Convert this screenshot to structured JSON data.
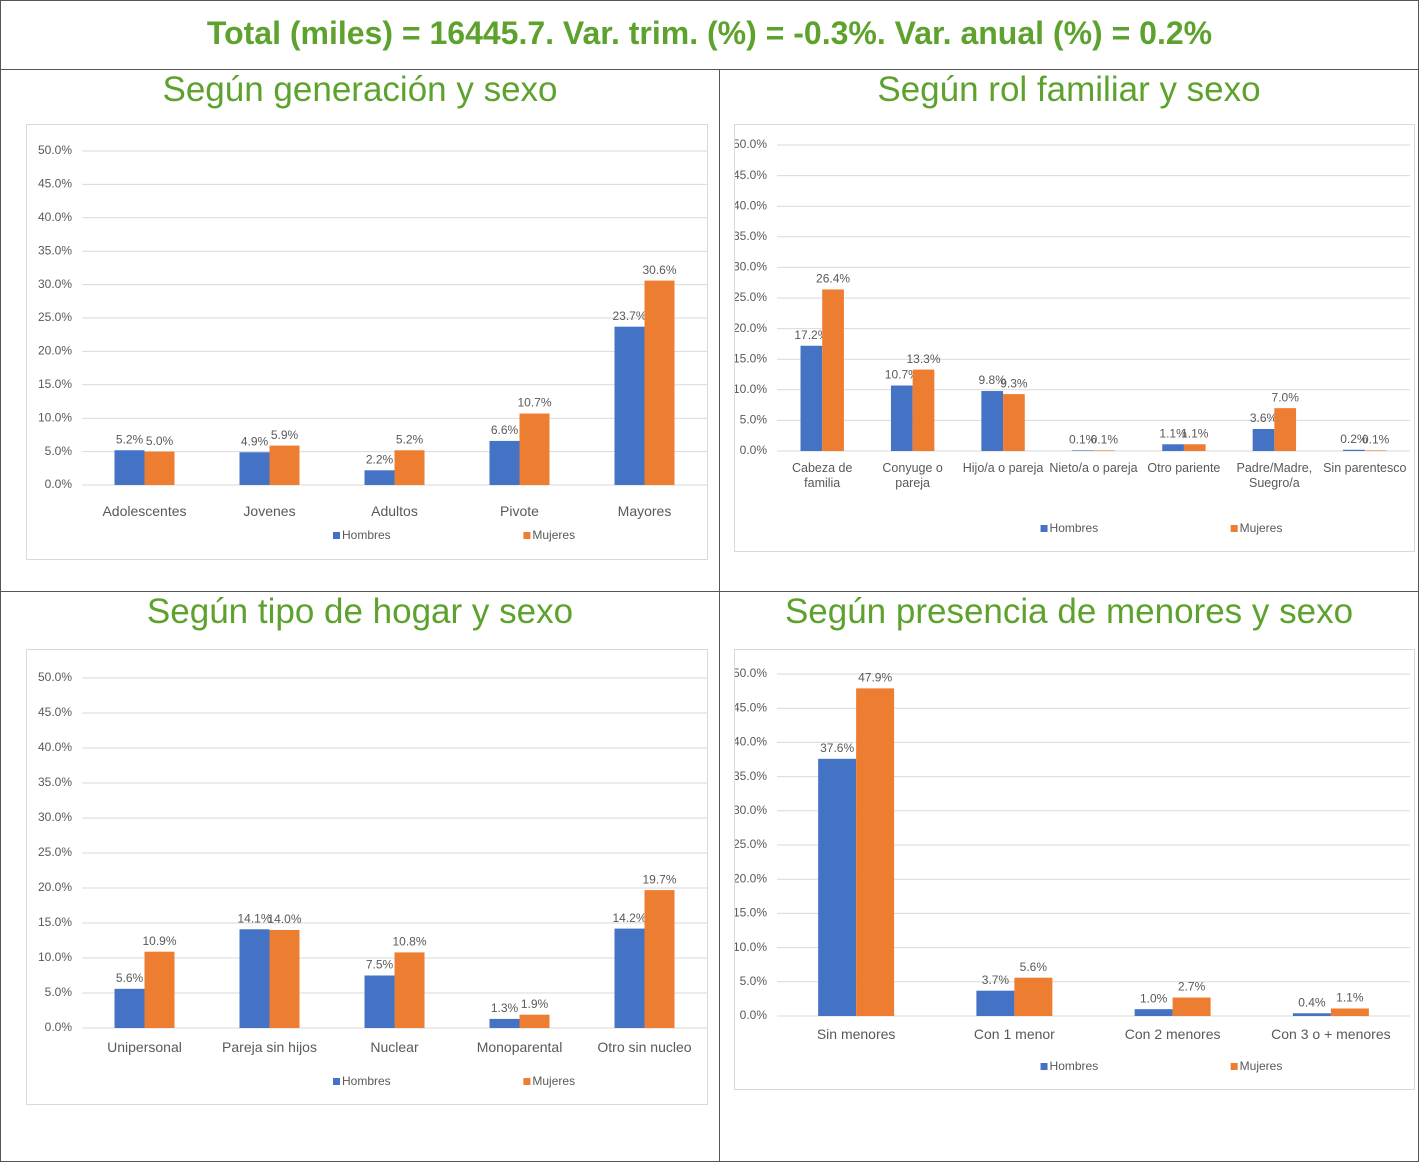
{
  "title": "Total (miles) = 16445.7. Var. trim. (%) = -0.3%. Var. anual (%) = 0.2%",
  "chart_data": [
    {
      "type": "bar",
      "title": "Según generación y sexo",
      "categories": [
        "Adolescentes",
        "Jovenes",
        "Adultos",
        "Pivote",
        "Mayores"
      ],
      "series": [
        {
          "name": "Hombres",
          "color": "#4472c4",
          "values": [
            5.2,
            4.9,
            2.2,
            6.6,
            23.7
          ],
          "value_labels": [
            "5.2%",
            "4.9%",
            "2.2%",
            "6.6%",
            "23.7%"
          ]
        },
        {
          "name": "Mujeres",
          "color": "#ed7d31",
          "values": [
            5.0,
            5.9,
            5.2,
            10.7,
            30.6
          ],
          "value_labels": [
            "5.0%",
            "5.9%",
            "5.2%",
            "10.7%",
            "30.6%"
          ]
        }
      ],
      "ylim": [
        0,
        50
      ],
      "yticks": [
        {
          "value": 0,
          "label": "0.0%"
        },
        {
          "value": 5,
          "label": "5.0%"
        },
        {
          "value": 10,
          "label": "10.0%"
        },
        {
          "value": 15,
          "label": "15.0%"
        },
        {
          "value": 20,
          "label": "20.0%"
        },
        {
          "value": 25,
          "label": "25.0%"
        },
        {
          "value": 30,
          "label": "30.0%"
        },
        {
          "value": 35,
          "label": "35.0%"
        },
        {
          "value": 40,
          "label": "40.0%"
        },
        {
          "value": 45,
          "label": "45.0%"
        },
        {
          "value": 50,
          "label": "50.0%"
        }
      ],
      "grid": true,
      "legend": "bottom"
    },
    {
      "type": "bar",
      "title": "Según rol familiar y sexo",
      "categories": [
        "Cabeza de familia",
        "Conyuge o pareja",
        "Hijo/a o pareja",
        "Nieto/a o pareja",
        "Otro pariente",
        "Padre/Madre, Suegro/a",
        "Sin parentesco"
      ],
      "series": [
        {
          "name": "Hombres",
          "color": "#4472c4",
          "values": [
            17.2,
            10.7,
            9.8,
            0.1,
            1.1,
            3.6,
            0.2
          ],
          "value_labels": [
            "17.2%",
            "10.7%",
            "9.8%",
            "0.1%",
            "1.1%",
            "3.6%",
            "0.2%"
          ]
        },
        {
          "name": "Mujeres",
          "color": "#ed7d31",
          "values": [
            26.4,
            13.3,
            9.3,
            0.1,
            1.1,
            7.0,
            0.1
          ],
          "value_labels": [
            "26.4%",
            "13.3%",
            "9.3%",
            "0.1%",
            "1.1%",
            "7.0%",
            "0.1%"
          ]
        }
      ],
      "ylim": [
        0,
        50
      ],
      "yticks": [
        {
          "value": 0,
          "label": "0.0%"
        },
        {
          "value": 5,
          "label": "5.0%"
        },
        {
          "value": 10,
          "label": "10.0%"
        },
        {
          "value": 15,
          "label": "15.0%"
        },
        {
          "value": 20,
          "label": "20.0%"
        },
        {
          "value": 25,
          "label": "25.0%"
        },
        {
          "value": 30,
          "label": "30.0%"
        },
        {
          "value": 35,
          "label": "35.0%"
        },
        {
          "value": 40,
          "label": "40.0%"
        },
        {
          "value": 45,
          "label": "45.0%"
        },
        {
          "value": 50,
          "label": "50.0%"
        }
      ],
      "grid": true,
      "legend": "bottom"
    },
    {
      "type": "bar",
      "title": "Según tipo de hogar y sexo",
      "categories": [
        "Unipersonal",
        "Pareja sin hijos",
        "Nuclear",
        "Monoparental",
        "Otro sin nucleo"
      ],
      "series": [
        {
          "name": "Hombres",
          "color": "#4472c4",
          "values": [
            5.6,
            14.1,
            7.5,
            1.3,
            14.2
          ],
          "value_labels": [
            "5.6%",
            "14.1%",
            "7.5%",
            "1.3%",
            "14.2%"
          ]
        },
        {
          "name": "Mujeres",
          "color": "#ed7d31",
          "values": [
            10.9,
            14.0,
            10.8,
            1.9,
            19.7
          ],
          "value_labels": [
            "10.9%",
            "14.0%",
            "10.8%",
            "1.9%",
            "19.7%"
          ]
        }
      ],
      "ylim": [
        0,
        50
      ],
      "yticks": [
        {
          "value": 0,
          "label": "0.0%"
        },
        {
          "value": 5,
          "label": "5.0%"
        },
        {
          "value": 10,
          "label": "10.0%"
        },
        {
          "value": 15,
          "label": "15.0%"
        },
        {
          "value": 20,
          "label": "20.0%"
        },
        {
          "value": 25,
          "label": "25.0%"
        },
        {
          "value": 30,
          "label": "30.0%"
        },
        {
          "value": 35,
          "label": "35.0%"
        },
        {
          "value": 40,
          "label": "40.0%"
        },
        {
          "value": 45,
          "label": "45.0%"
        },
        {
          "value": 50,
          "label": "50.0%"
        }
      ],
      "grid": true,
      "legend": "bottom"
    },
    {
      "type": "bar",
      "title": "Según presencia de menores y sexo",
      "categories": [
        "Sin menores",
        "Con 1 menor",
        "Con 2 menores",
        "Con 3 o + menores"
      ],
      "series": [
        {
          "name": "Hombres",
          "color": "#4472c4",
          "values": [
            37.6,
            3.7,
            1.0,
            0.4
          ],
          "value_labels": [
            "37.6%",
            "3.7%",
            "1.0%",
            "0.4%"
          ]
        },
        {
          "name": "Mujeres",
          "color": "#ed7d31",
          "values": [
            47.9,
            5.6,
            2.7,
            1.1
          ],
          "value_labels": [
            "47.9%",
            "5.6%",
            "2.7%",
            "1.1%"
          ]
        }
      ],
      "ylim": [
        0,
        50
      ],
      "yticks": [
        {
          "value": 0,
          "label": "0.0%"
        },
        {
          "value": 5,
          "label": "5.0%"
        },
        {
          "value": 10,
          "label": "10.0%"
        },
        {
          "value": 15,
          "label": "15.0%"
        },
        {
          "value": 20,
          "label": "20.0%"
        },
        {
          "value": 25,
          "label": "25.0%"
        },
        {
          "value": 30,
          "label": "30.0%"
        },
        {
          "value": 35,
          "label": "35.0%"
        },
        {
          "value": 40,
          "label": "40.0%"
        },
        {
          "value": 45,
          "label": "45.0%"
        },
        {
          "value": 50,
          "label": "50.0%"
        }
      ],
      "grid": true,
      "legend": "bottom"
    }
  ]
}
